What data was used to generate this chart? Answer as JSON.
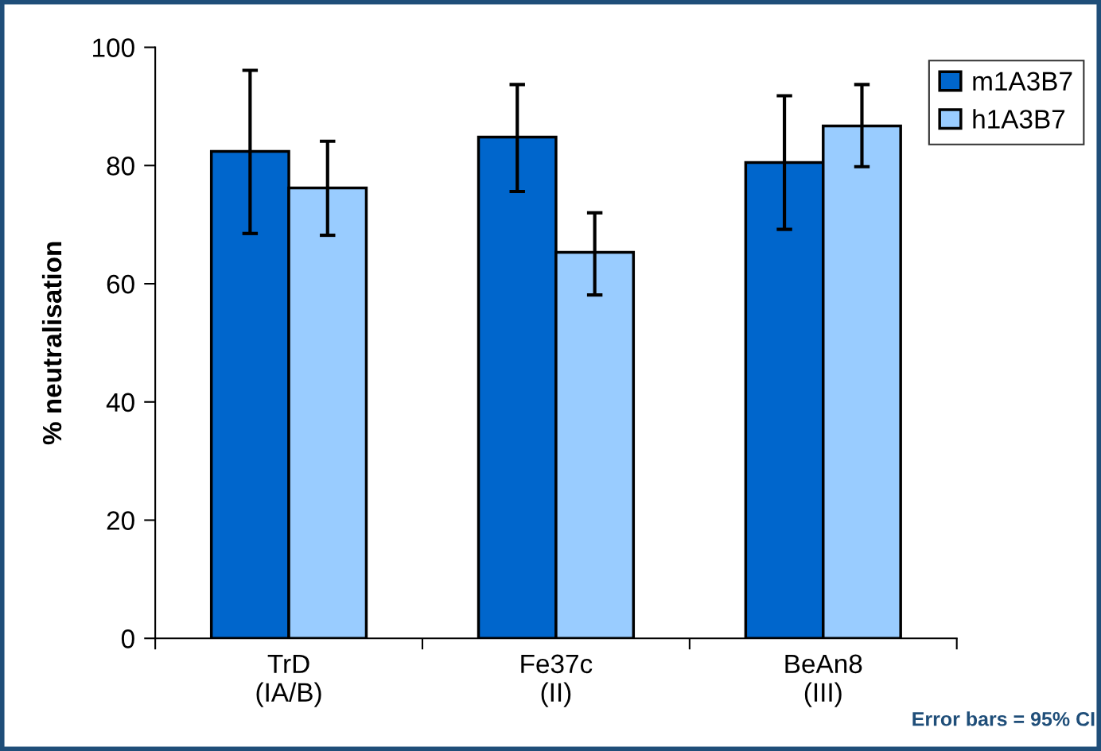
{
  "chart_data": {
    "type": "bar",
    "categories": [
      "TrD\n(IA/B)",
      "Fe37c\n(II)",
      "BeAn8\n(III)"
    ],
    "ylabel": "% neutralisation",
    "ylim": [
      0,
      100
    ],
    "yticks": [
      0,
      20,
      40,
      60,
      80,
      100
    ],
    "series": [
      {
        "name": "m1A3B7",
        "color": "#0066cc",
        "values": [
          82.4,
          84.8,
          80.5
        ],
        "errors": [
          [
            68.5,
            96.1
          ],
          [
            75.6,
            93.7
          ],
          [
            69.2,
            91.8
          ]
        ]
      },
      {
        "name": "h1A3B7",
        "color": "#99ccff",
        "values": [
          76.2,
          65.3,
          86.7
        ],
        "errors": [
          [
            68.2,
            84.1
          ],
          [
            58.1,
            72.0
          ],
          [
            79.8,
            93.7
          ]
        ]
      }
    ],
    "legend": "top right",
    "grid": false,
    "annotations": [
      "Error bars = 95% CI"
    ]
  }
}
